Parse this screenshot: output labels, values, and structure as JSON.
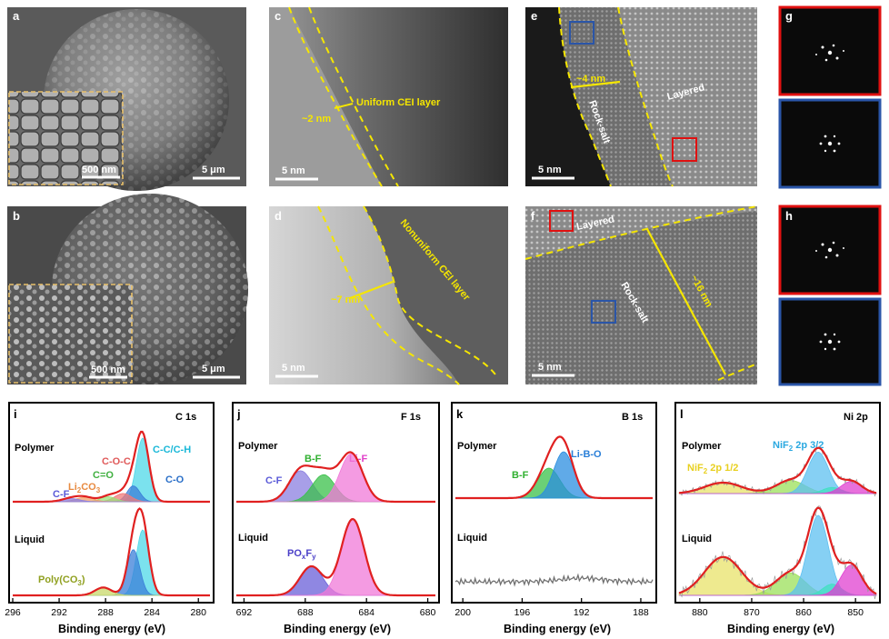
{
  "figure": {
    "panels": {
      "a": {
        "label": "a",
        "scale_main": "5 μm",
        "scale_inset": "500 nm"
      },
      "b": {
        "label": "b",
        "scale_main": "5 μm",
        "scale_inset": "500 nm"
      },
      "c": {
        "label": "c",
        "scale": "5 nm",
        "thickness": "~2 nm",
        "layer": "Uniform CEI layer"
      },
      "d": {
        "label": "d",
        "scale": "5 nm",
        "thickness": "~7 nm",
        "layer": "Nonuniform CEI layer"
      },
      "e": {
        "label": "e",
        "scale": "5 nm",
        "thickness": "~4 nm",
        "region1": "Rock-salt",
        "region2": "Layered"
      },
      "f": {
        "label": "f",
        "scale": "5 nm",
        "thickness": "~16 nm",
        "region1": "Layered",
        "region2": "Rock-salt"
      },
      "g": {
        "label": "g"
      },
      "h": {
        "label": "h"
      }
    },
    "xps_labels": {
      "polymer": "Polymer",
      "liquid": "Liquid",
      "axis": "Binding energy (eV)"
    },
    "colors": {
      "envelope": "#e02020",
      "yellow": "#f5e600",
      "red_box": "#e01010",
      "blue_box": "#2a55a8"
    }
  },
  "chart_data": [
    {
      "type": "line",
      "panel": "i",
      "title": "C 1s",
      "xlabel": "Binding energy (eV)",
      "xlim": [
        296,
        279
      ],
      "xticks": [
        296,
        292,
        288,
        284,
        280
      ],
      "polymer_peaks": [
        {
          "name": "C-C/C-H",
          "center": 284.8,
          "color": "#4fd8e8"
        },
        {
          "name": "C-O",
          "center": 285.6,
          "color": "#3b7fd8"
        },
        {
          "name": "C-O-C",
          "center": 286.5,
          "color": "#f07a7a"
        },
        {
          "name": "C=O",
          "center": 287.8,
          "color": "#9be07a"
        },
        {
          "name": "Li2CO3",
          "center": 289.8,
          "color": "#f2a06a"
        },
        {
          "name": "C-F",
          "center": 291.0,
          "color": "#8b7fe0"
        }
      ],
      "polymer_annotations": [
        "C-C/C-H",
        "C-O",
        "C-O-C",
        "C=O",
        "Li",
        "2",
        "CO",
        "3",
        "C-F"
      ],
      "liquid_peaks": [
        {
          "name": "C-C/C-H",
          "center": 284.8,
          "color": "#4fd8e8"
        },
        {
          "name": "C-O",
          "center": 285.6,
          "color": "#3b7fd8"
        },
        {
          "name": "Poly(CO3)",
          "center": 288.2,
          "color": "#c8d86a"
        }
      ],
      "liquid_annotations": [
        "Poly(CO",
        "3",
        ")"
      ]
    },
    {
      "type": "line",
      "panel": "j",
      "title": "F 1s",
      "xlabel": "Binding energy (eV)",
      "xlim": [
        692.5,
        679.5
      ],
      "xticks": [
        692,
        688,
        684,
        680
      ],
      "polymer_peaks": [
        {
          "name": "C-F",
          "center": 688.3,
          "color": "#8b7fe0"
        },
        {
          "name": "B-F",
          "center": 686.8,
          "color": "#3ac04a"
        },
        {
          "name": "Li-F",
          "center": 685.0,
          "color": "#f07ad8"
        }
      ],
      "polymer_annotations": [
        "C-F",
        "B-F",
        "Li-F"
      ],
      "liquid_peaks": [
        {
          "name": "POxFy",
          "center": 687.6,
          "color": "#6a5fd8"
        },
        {
          "name": "Li-F",
          "center": 684.9,
          "color": "#f07ad8"
        }
      ],
      "liquid_annotations": [
        "PO",
        "x",
        "F",
        "y"
      ]
    },
    {
      "type": "line",
      "panel": "k",
      "title": "B 1s",
      "xlabel": "Binding energy (eV)",
      "xlim": [
        200.5,
        187.2
      ],
      "xticks": [
        200,
        196,
        192,
        188
      ],
      "polymer_peaks": [
        {
          "name": "B-F",
          "center": 194.2,
          "color": "#3ac04a"
        },
        {
          "name": "Li-B-O",
          "center": 193.2,
          "color": "#2b8ee0"
        }
      ],
      "polymer_annotations": [
        "B-F",
        "Li-B-O"
      ],
      "liquid_peaks": []
    },
    {
      "type": "line",
      "panel": "l",
      "title": "Ni 2p",
      "xlabel": "Binding energy (eV)",
      "xlim": [
        884,
        846
      ],
      "xticks": [
        880,
        870,
        860,
        850
      ],
      "polymer_peaks": [
        {
          "name": "NiF2 2p 1/2",
          "center": 875.5,
          "color": "#e8e36a"
        },
        {
          "name": "sat",
          "center": 862.5,
          "color": "#9be05a"
        },
        {
          "name": "NiF2 2p 3/2",
          "center": 857.2,
          "color": "#5ec0f0"
        },
        {
          "name": "sat2",
          "center": 854.5,
          "color": "#40e0c0"
        },
        {
          "name": "NiF2 Ni",
          "center": 850.8,
          "color": "#e040d0"
        }
      ],
      "polymer_annotations": [
        "NiF",
        "2",
        " 2p 3/2",
        "NiF",
        "2",
        " 2p 1/2"
      ],
      "liquid_peaks": [
        {
          "name": "NiF2 2p 1/2",
          "center": 875.5,
          "color": "#e8e36a"
        },
        {
          "name": "sat",
          "center": 862.5,
          "color": "#9be05a"
        },
        {
          "name": "NiF2 2p 3/2",
          "center": 857.2,
          "color": "#5ec0f0"
        },
        {
          "name": "sat2",
          "center": 854.5,
          "color": "#40e0c0"
        },
        {
          "name": "NiF2 Ni",
          "center": 850.8,
          "color": "#e040d0"
        }
      ]
    }
  ]
}
